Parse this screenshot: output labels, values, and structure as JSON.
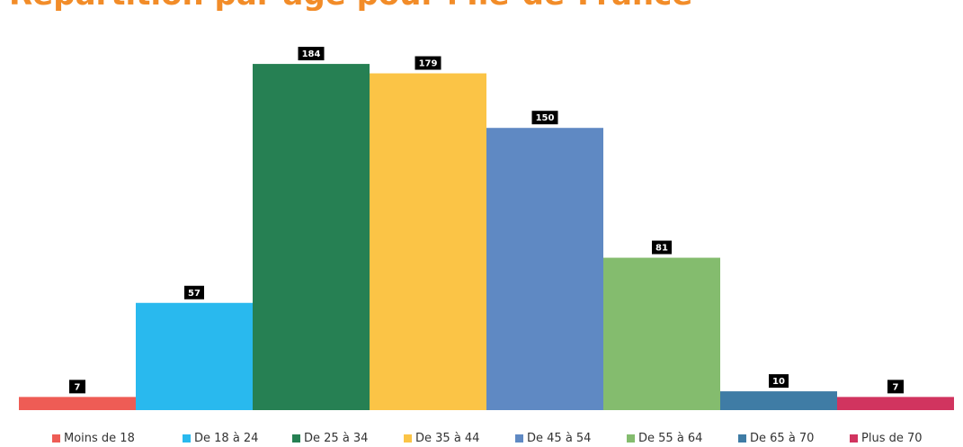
{
  "title": "Répartition par âge pour l'Île-de-France",
  "chart_data": {
    "type": "bar",
    "categories": [
      "Moins de 18",
      "De 18 à 24",
      "De 25 à 34",
      "De 35 à 44",
      "De 45 à 54",
      "De 55 à 64",
      "De 65 à 70",
      "Plus de 70"
    ],
    "values": [
      7,
      57,
      184,
      179,
      150,
      81,
      10,
      7
    ],
    "colors": [
      "#EE5C55",
      "#29B9EE",
      "#268053",
      "#FBC446",
      "#5F89C3",
      "#84BC6E",
      "#3F7CA5",
      "#D1345F"
    ],
    "ylim": [
      0,
      200
    ],
    "grid": false,
    "legend": "bottom",
    "data_labels": true
  }
}
